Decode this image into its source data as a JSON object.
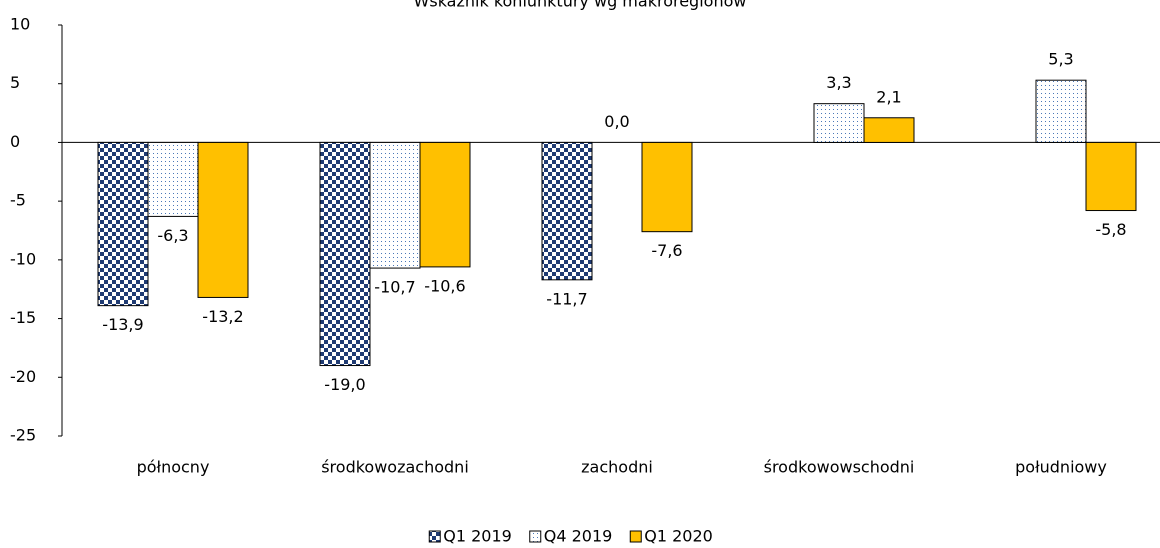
{
  "chart_data": {
    "type": "bar",
    "title": "Wskaźnik koniunktury wg makroregionów",
    "categories": [
      "północny",
      "środkowozachodni",
      "zachodni",
      "środkowowschodni",
      "południowy"
    ],
    "series": [
      {
        "name": "Q1 2019",
        "color": "#1f3b73",
        "pattern": "checker",
        "values": [
          -13.9,
          -19.0,
          -11.7,
          null,
          null
        ],
        "value_labels": [
          "-13,9",
          "-19,0",
          "-11,7",
          null,
          null
        ]
      },
      {
        "name": "Q4 2019",
        "color": "#4a78b8",
        "pattern": "dots",
        "values": [
          -6.3,
          -10.7,
          0.0,
          3.3,
          5.3
        ],
        "value_labels": [
          "-6,3",
          "-10,7",
          "0,0",
          "3,3",
          "5,3"
        ]
      },
      {
        "name": "Q1 2020",
        "color": "#ffc000",
        "pattern": "solid",
        "values": [
          -13.2,
          -10.6,
          -7.6,
          2.1,
          -5.8
        ],
        "value_labels": [
          "-13,2",
          "-10,6",
          "-7,6",
          "2,1",
          "-5,8"
        ]
      }
    ],
    "ylim": [
      -25,
      10
    ],
    "yticks": [
      -25,
      -20,
      -15,
      -10,
      -5,
      0,
      5,
      10
    ],
    "legend": "bottom"
  }
}
